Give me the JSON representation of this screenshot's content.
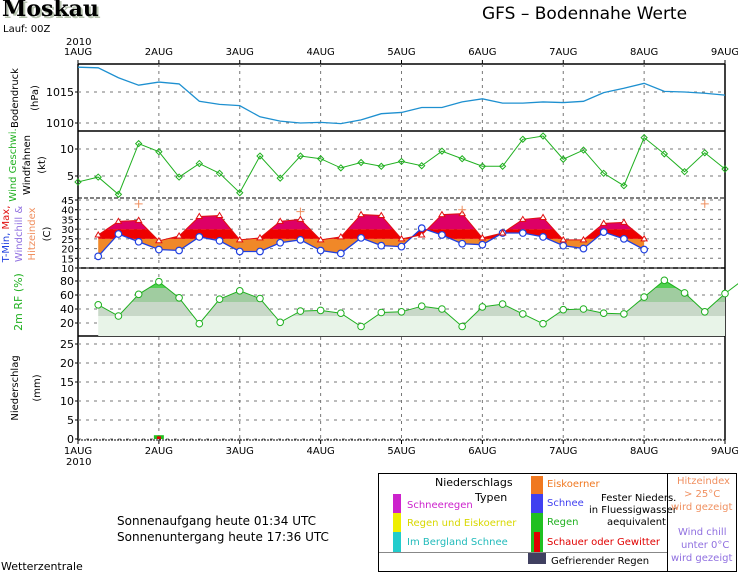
{
  "header": {
    "city": "Moskau",
    "run": "Lauf: 00Z",
    "title": "GFS – Bodennahe Werte",
    "year_top": "2010",
    "year_bottom": "2010"
  },
  "chart_data": {
    "type": "line",
    "title": "GFS - Bodennahe Werte",
    "x_ticks": [
      "1AUG",
      "2AUG",
      "3AUG",
      "4AUG",
      "5AUG",
      "6AUG",
      "7AUG",
      "8AUG",
      "9AUG"
    ],
    "x_unit": "days since 1AUG 00Z",
    "panels": [
      {
        "name": "pressure",
        "ylabel": "Bodendruck",
        "yunit": "(hPa)",
        "ylim": [
          1009,
          1020
        ],
        "yticks": [
          1010,
          1015
        ],
        "color": "#1e90d0",
        "series": [
          {
            "name": "Bodendruck",
            "x": [
              0,
              0.25,
              0.5,
              0.75,
              1.0,
              1.25,
              1.5,
              1.75,
              2.0,
              2.25,
              2.5,
              2.75,
              3.0,
              3.25,
              3.5,
              3.75,
              4.0,
              4.25,
              4.5,
              4.75,
              5.0,
              5.25,
              5.5,
              5.75,
              6.0,
              6.25,
              6.5,
              6.75,
              7.0,
              7.25,
              7.5,
              7.75,
              8.0
            ],
            "values": [
              1019,
              1018.9,
              1017.3,
              1016.1,
              1016.6,
              1016.3,
              1013.5,
              1013,
              1012.8,
              1011,
              1010.3,
              1010,
              1010.1,
              1009.9,
              1010.5,
              1011.5,
              1011.7,
              1012.5,
              1012.5,
              1013.4,
              1013.9,
              1013.2,
              1013.2,
              1013.4,
              1013.3,
              1013.5,
              1014.9,
              1015.6,
              1016.4,
              1015.1,
              1015,
              1014.8,
              1014.5
            ]
          }
        ]
      },
      {
        "name": "wind",
        "ylabel_green": "Wind Geschwi.",
        "ylabel": "Windfahnen",
        "yunit": "(kt)",
        "ylim": [
          2,
          13
        ],
        "yticks": [
          5,
          10
        ],
        "color": "#20b020",
        "series": [
          {
            "name": "Wind speed",
            "x_start": 0,
            "x_step": 0.25,
            "values": [
              3.9,
              4.8,
              1.6,
              11,
              9.5,
              4.8,
              7.3,
              5.5,
              1.9,
              8.7,
              4.6,
              8.7,
              8.2,
              6.5,
              7.5,
              6.8,
              7.7,
              6.9,
              9.6,
              8.2,
              6.8,
              6.8,
              11.8,
              12.4,
              8.1,
              9.8,
              5.5,
              3.2,
              12.1,
              9.1,
              5.8,
              9.3,
              6.3
            ]
          }
        ]
      },
      {
        "name": "temperature",
        "ylabel_parts": [
          "T-Min,",
          "Max,",
          "Windchill &",
          "Hitzeindex"
        ],
        "yunit": "(C)",
        "ylim": [
          10,
          45
        ],
        "yticks": [
          10,
          15,
          20,
          25,
          30,
          35,
          40,
          45
        ],
        "series": [
          {
            "name": "T-Min",
            "color": "#2040e0",
            "x_start": 0.25,
            "x_step": 0.25,
            "values": [
              16,
              27.5,
              23.5,
              19.5,
              19,
              26,
              24,
              18.5,
              18.5,
              23,
              24.5,
              19,
              17.5,
              25.5,
              21.5,
              21,
              30.5,
              27,
              22.5,
              22,
              28,
              28,
              26,
              21.5,
              20,
              28.5,
              25,
              19.5,
              18,
              18.5,
              22.5,
              23
            ]
          },
          {
            "name": "T-Max",
            "color": "#e01010",
            "x_start": 0.25,
            "x_step": 0.25,
            "values": [
              27,
              34,
              34.5,
              24,
              26.5,
              36.5,
              37,
              24.5,
              25.5,
              34,
              35,
              24.5,
              26,
              37.5,
              37,
              25,
              27,
              37.5,
              38,
              25.5,
              28,
              35,
              36,
              24.5,
              24.5,
              33,
              33.5,
              25
            ]
          },
          {
            "name": "Hitzeindex",
            "color": "#f09060",
            "values": [
              43,
              39,
              40,
              43,
              40
            ]
          }
        ]
      },
      {
        "name": "relative_humidity",
        "ylabel": "2m RF (%)",
        "ylim": [
          0,
          90
        ],
        "yticks": [
          20,
          40,
          60,
          80
        ],
        "color": "#20b020",
        "series": [
          {
            "name": "RF",
            "x_start": 0.25,
            "x_step": 0.25,
            "values": [
              46,
              30,
              61,
              79,
              56,
              19,
              54,
              66,
              55,
              21,
              37,
              38,
              34,
              15,
              35,
              36,
              44,
              40,
              15,
              43,
              47,
              33,
              19,
              39,
              40,
              34,
              33,
              57,
              81,
              63,
              36,
              62,
              84
            ]
          }
        ]
      },
      {
        "name": "precipitation",
        "ylabel": "Niederschlag",
        "yunit": "(mm)",
        "ylim": [
          0,
          27
        ],
        "yticks": [
          0,
          5,
          10,
          15,
          20,
          25
        ],
        "series": [
          {
            "name": "Regen",
            "color": "#20c020",
            "x": [
              1.0
            ],
            "values": [
              1
            ]
          },
          {
            "name": "Schauer oder Gewitter",
            "color": "#e00000",
            "x": [
              1.0
            ],
            "values": [
              0.7
            ]
          }
        ]
      }
    ]
  },
  "legend": {
    "title1": "Niederschlags",
    "title2": "Typen",
    "items_left": [
      {
        "label": "Schneeregen",
        "color": "#cc22cc"
      },
      {
        "label": "Regen und Eiskoerner",
        "color": "#eeee00"
      },
      {
        "label": "Im Bergland Schnee",
        "color": "#22cccc"
      }
    ],
    "items_right": [
      {
        "label": "Eiskoerner",
        "color": "#f07820"
      },
      {
        "label": "Schnee",
        "color": "#4040f0"
      },
      {
        "label": "Regen",
        "color": "#20c020"
      },
      {
        "label": "Schauer oder Gewitter",
        "color": "#e00000"
      }
    ],
    "fester1": "Fester Nieders.",
    "fester2": "in Fluessigwasser",
    "fester3": "aequivalent",
    "freezing": {
      "label": "Gefrierender Regen",
      "color": "#404060"
    },
    "hitze1": "Hitzeindex",
    "hitze2": "> 25°C",
    "hitze3": "wird gezeigt",
    "chill1": "Wind chill",
    "chill2": "unter 0°C",
    "chill3": "wird gezeigt"
  },
  "sun": {
    "sunrise": "Sonnenaufgang heute 01:34 UTC",
    "sunset": "Sonnenuntergang heute 17:36 UTC"
  },
  "footer": {
    "brand": "Wetterzentrale"
  }
}
